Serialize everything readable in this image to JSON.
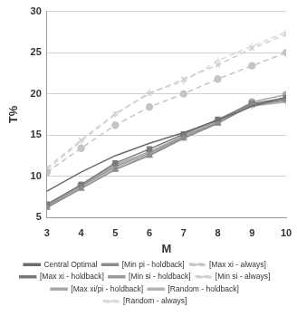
{
  "chart_data": {
    "type": "line",
    "x_label": "M",
    "y_label": "T%",
    "x": [
      3,
      4,
      5,
      6,
      7,
      8,
      9,
      10
    ],
    "xlim": [
      3,
      10
    ],
    "xticks": [
      3,
      4,
      5,
      6,
      7,
      8,
      9,
      10
    ],
    "ylim": [
      5,
      30
    ],
    "yticks": [
      5,
      10,
      15,
      20,
      25,
      30
    ],
    "grid": true,
    "legend": "bottom",
    "series": [
      {
        "name": "Central Optimal",
        "color": "#6b6b6b",
        "marker": "none",
        "line_style": "solid",
        "values": [
          8.2,
          10.5,
          12.5,
          14.0,
          15.3,
          16.8,
          18.5,
          19.6
        ]
      },
      {
        "name": "[Min pi - holdback]",
        "color": "#8c8c8c",
        "marker": "triangle",
        "line_style": "solid",
        "values": [
          6.2,
          8.5,
          10.8,
          12.5,
          14.6,
          16.4,
          18.7,
          19.3
        ]
      },
      {
        "name": "[Max xi - always]",
        "color": "#c4c4c4",
        "marker": "circle",
        "line_style": "dashed",
        "values": [
          10.5,
          13.4,
          16.2,
          18.4,
          20.0,
          21.8,
          23.4,
          25.0
        ]
      },
      {
        "name": "[Max xi - holdback]",
        "color": "#7a7a7a",
        "marker": "square",
        "line_style": "solid",
        "values": [
          6.6,
          9.0,
          11.6,
          13.3,
          15.1,
          16.9,
          18.8,
          19.5
        ]
      },
      {
        "name": "[Min si - holdback]",
        "color": "#9a9a9a",
        "marker": "x",
        "line_style": "solid",
        "values": [
          6.4,
          8.8,
          11.2,
          12.8,
          14.8,
          16.5,
          18.6,
          19.2
        ]
      },
      {
        "name": "[Min si - always]",
        "color": "#cfcfcf",
        "marker": "x",
        "line_style": "dashed",
        "values": [
          11.0,
          14.4,
          17.6,
          20.0,
          21.8,
          23.5,
          25.5,
          27.2
        ]
      },
      {
        "name": "[Max xi/pi - holdback]",
        "color": "#a6a6a6",
        "marker": "circle",
        "line_style": "solid",
        "values": [
          6.5,
          8.9,
          11.4,
          13.0,
          14.9,
          16.7,
          19.0,
          19.9
        ]
      },
      {
        "name": "[Random - holdback]",
        "color": "#b3b3b3",
        "marker": "plus",
        "line_style": "solid",
        "values": [
          6.3,
          8.7,
          11.0,
          12.6,
          14.7,
          16.6,
          18.5,
          19.0
        ]
      },
      {
        "name": "[Random - always]",
        "color": "#d9d9d9",
        "marker": "plus",
        "line_style": "dashed",
        "values": [
          10.8,
          14.2,
          17.5,
          20.2,
          21.5,
          24.0,
          25.8,
          27.5
        ]
      }
    ]
  }
}
